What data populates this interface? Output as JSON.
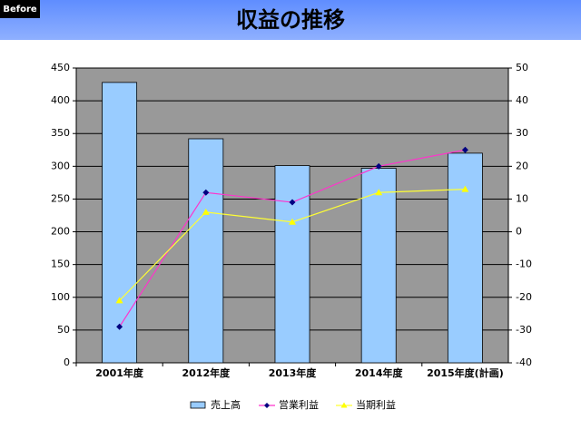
{
  "badge": "Before",
  "chart_data": {
    "type": "bar",
    "title": "収益の推移",
    "categories": [
      "2001年度",
      "2012年度",
      "2013年度",
      "2014年度",
      "2015年度(計画)"
    ],
    "series": [
      {
        "name": "売上高",
        "type": "bar",
        "axis": "y",
        "color": "#99ccff",
        "values": [
          428,
          342,
          301,
          297,
          320
        ]
      },
      {
        "name": "営業利益",
        "type": "line",
        "axis": "y2",
        "color": "#ff33cc",
        "marker_color": "#000080",
        "marker": "diamond",
        "values": [
          -29,
          12,
          9,
          20,
          25
        ]
      },
      {
        "name": "当期利益",
        "type": "line",
        "axis": "y2",
        "color": "#ffff33",
        "marker_color": "#ffff00",
        "marker": "triangle",
        "values": [
          -21,
          6,
          3,
          12,
          13
        ]
      }
    ],
    "ylim": [
      0,
      450
    ],
    "yticks": [
      0,
      50,
      100,
      150,
      200,
      250,
      300,
      350,
      400,
      450
    ],
    "y2lim": [
      -40,
      50
    ],
    "y2ticks": [
      -40,
      -30,
      -20,
      -10,
      0,
      10,
      20,
      30,
      40,
      50
    ],
    "grid": true,
    "legend": "bottom",
    "plot_background": "#999999"
  }
}
